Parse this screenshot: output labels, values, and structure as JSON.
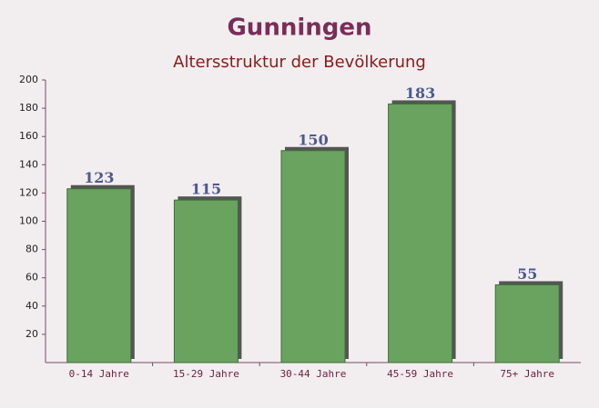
{
  "chart_data": {
    "type": "bar",
    "title": "Gunningen",
    "subtitle": "Altersstruktur der Bevölkerung",
    "categories": [
      "0-14 Jahre",
      "15-29 Jahre",
      "30-44 Jahre",
      "45-59 Jahre",
      "75+ Jahre"
    ],
    "values": [
      123,
      115,
      150,
      183,
      55
    ],
    "color": "#6aa35f",
    "ylim": [
      0,
      200
    ],
    "yticks": [
      20,
      40,
      60,
      80,
      100,
      120,
      140,
      160,
      180,
      200
    ],
    "grid": false
  }
}
